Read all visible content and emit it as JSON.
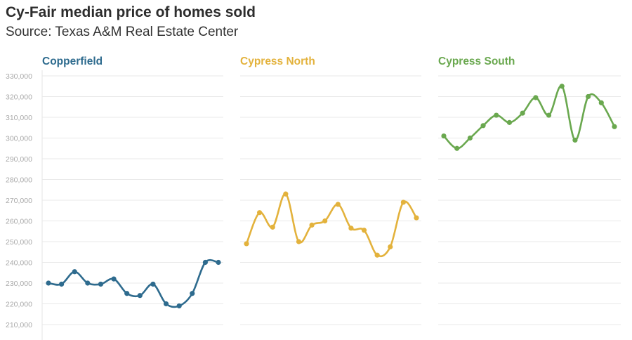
{
  "title": "Cy-Fair median price of homes sold",
  "subtitle": "Source: Texas A&M Real Estate Center",
  "chart_data": {
    "type": "line",
    "yticks": [
      "330,000",
      "320,000",
      "310,000",
      "300,000",
      "290,000",
      "280,000",
      "270,000",
      "260,000",
      "250,000",
      "240,000",
      "230,000",
      "220,000",
      "210,000"
    ],
    "ylim": [
      210000,
      330000
    ],
    "grid": true,
    "panels": [
      {
        "name": "Copperfield",
        "color": "#2e6b8e",
        "values": [
          230000,
          229500,
          235500,
          230000,
          229500,
          232000,
          225000,
          224000,
          229500,
          220000,
          219000,
          225000,
          240000,
          240000
        ]
      },
      {
        "name": "Cypress North",
        "color": "#e3b23c",
        "values": [
          249000,
          264000,
          257000,
          273000,
          250000,
          258000,
          260000,
          268000,
          256500,
          255500,
          243500,
          247500,
          269000,
          261500
        ]
      },
      {
        "name": "Cypress South",
        "color": "#6aa84f",
        "values": [
          301000,
          295000,
          300000,
          306000,
          311000,
          307500,
          312000,
          319500,
          311000,
          325000,
          299000,
          320000,
          317000,
          305500
        ]
      }
    ]
  }
}
